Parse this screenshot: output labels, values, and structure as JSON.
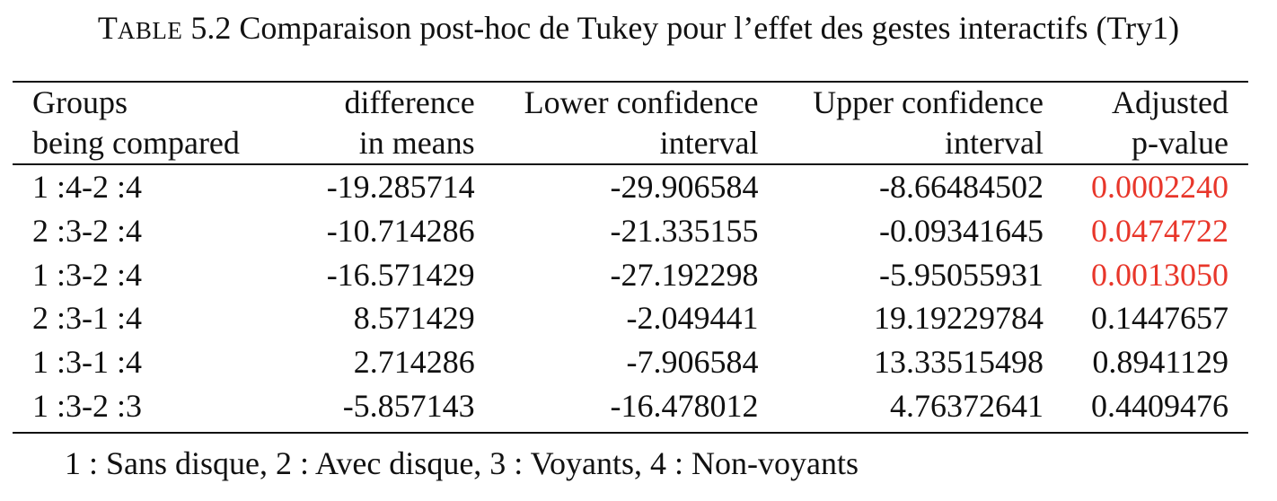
{
  "caption": {
    "prefix_first": "T",
    "prefix_rest": "ABLE",
    "number": "5.2",
    "title": "Comparaison post-hoc de Tukey pour l’effet des gestes interactifs (Try1)"
  },
  "table": {
    "header": [
      [
        "Groups",
        "being compared"
      ],
      [
        "difference",
        "in means"
      ],
      [
        "Lower confidence",
        "interval"
      ],
      [
        "Upper confidence",
        "interval"
      ],
      [
        "Adjusted",
        "p-value"
      ]
    ],
    "rows": [
      [
        "1 :4-2 :4",
        "-19.285714",
        "-29.906584",
        "-8.66484502",
        "0.0002240"
      ],
      [
        "2 :3-2 :4",
        "-10.714286",
        "-21.335155",
        "-0.09341645",
        "0.0474722"
      ],
      [
        "1 :3-2 :4",
        "-16.571429",
        "-27.192298",
        "-5.95055931",
        "0.0013050"
      ],
      [
        "2 :3-1 :4",
        "8.571429",
        "-2.049441",
        "19.19229784",
        "0.1447657"
      ],
      [
        "1 :3-1 :4",
        "2.714286",
        "-7.906584",
        "13.33515498",
        "0.8941129"
      ],
      [
        "1 :3-2 :3",
        "-5.857143",
        "-16.478012",
        "4.76372641",
        "0.4409476"
      ]
    ],
    "significant_color": "#e8362a",
    "significant_rows": [
      true,
      true,
      true,
      false,
      false,
      false
    ]
  },
  "footnote": "1 : Sans disque, 2 : Avec disque, 3 : Voyants, 4 : Non-voyants"
}
